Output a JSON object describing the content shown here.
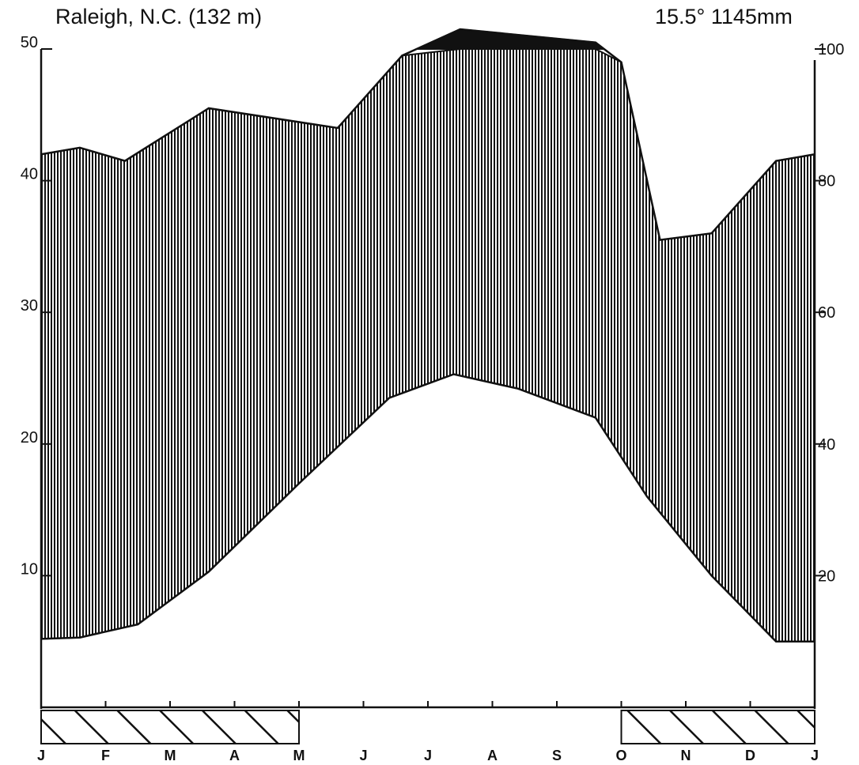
{
  "header": {
    "station": "Raleigh, N.C. (132 m)",
    "summary": "15.5° 1145mm"
  },
  "chart_data": {
    "type": "area",
    "title": "Raleigh, N.C. (132 m)",
    "subtitle": "15.5° 1145mm",
    "x_labels": [
      "J",
      "F",
      "M",
      "A",
      "M",
      "J",
      "J",
      "A",
      "S",
      "O",
      "N",
      "D",
      "J"
    ],
    "left_axis": {
      "ticks": [
        10,
        20,
        30,
        40,
        50
      ],
      "ylim": [
        0,
        50
      ],
      "unit": "°C"
    },
    "right_axis": {
      "ticks": [
        20,
        40,
        60,
        80,
        100
      ],
      "ylim": [
        0,
        100
      ],
      "unit": "mm"
    },
    "series": [
      {
        "kind": "temperature",
        "x": [
          0,
          0.6,
          1.5,
          2.6,
          4.0,
          5.4,
          6.4,
          7.4,
          8.6,
          9.4,
          10.4,
          11.4,
          12
        ],
        "values": [
          5.2,
          5.3,
          6.3,
          10.3,
          17.0,
          23.5,
          25.3,
          24.2,
          22.0,
          16.0,
          10.0,
          5.0,
          5.0
        ]
      },
      {
        "kind": "precipitation",
        "x": [
          0,
          0.6,
          1.3,
          2.6,
          4.6,
          5.6,
          6.5,
          8.6,
          9.0,
          9.6,
          10.4,
          11.4,
          12
        ],
        "values": [
          84,
          85,
          83,
          91,
          88,
          99,
          103,
          101,
          98,
          71,
          72,
          83,
          84
        ],
        "capped_at": 100
      }
    ],
    "frost_months": [
      {
        "from": 0,
        "to": 4
      },
      {
        "from": 9,
        "to": 12
      }
    ],
    "colors": {
      "ink": "#111111",
      "paper": "#ffffff"
    }
  }
}
